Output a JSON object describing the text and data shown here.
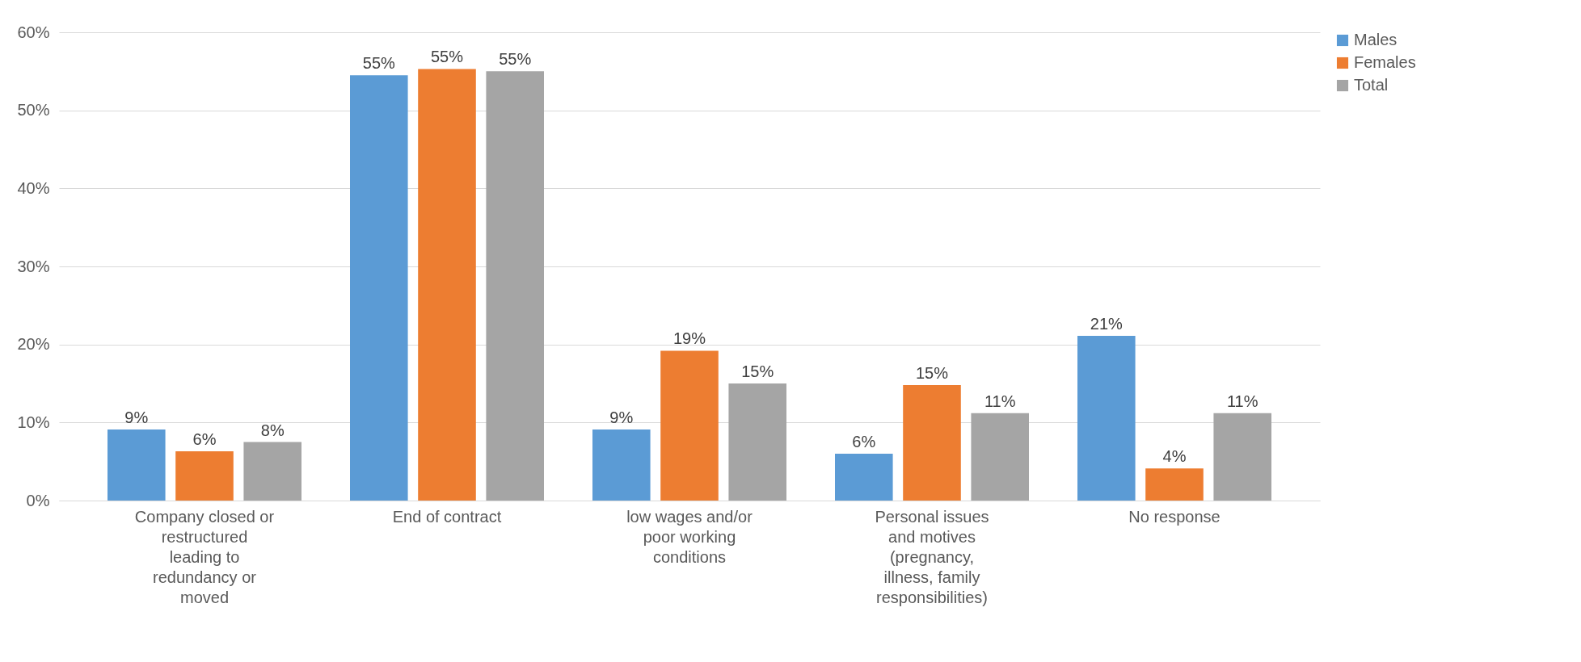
{
  "chart_data": {
    "type": "bar",
    "categories": [
      "Company closed or restructured leading to redundancy or moved",
      "End of contract",
      "low wages and/or poor working conditions",
      "Personal issues and motives (pregnancy, illness, family responsibilities)",
      "No response"
    ],
    "series": [
      {
        "name": "Males",
        "color": "#5b9bd5",
        "values": [
          9.1,
          54.5,
          9.1,
          6.0,
          21.1
        ],
        "value_labels": [
          "9%",
          "55%",
          "9%",
          "6%",
          "21%"
        ]
      },
      {
        "name": "Females",
        "color": "#ed7d31",
        "values": [
          6.3,
          55.3,
          19.2,
          14.8,
          4.1
        ],
        "value_labels": [
          "6%",
          "55%",
          "19%",
          "15%",
          "4%"
        ]
      },
      {
        "name": "Total",
        "color": "#a5a5a5",
        "values": [
          7.5,
          55.0,
          15.0,
          11.2,
          11.2
        ],
        "value_labels": [
          "8%",
          "55%",
          "15%",
          "11%",
          "11%"
        ]
      }
    ],
    "ylim": [
      0,
      60
    ],
    "yticks": [
      {
        "value": 0,
        "label": "0%"
      },
      {
        "value": 10,
        "label": "10%"
      },
      {
        "value": 20,
        "label": "20%"
      },
      {
        "value": 30,
        "label": "30%"
      },
      {
        "value": 40,
        "label": "40%"
      },
      {
        "value": 50,
        "label": "50%"
      },
      {
        "value": 60,
        "label": "60%"
      }
    ],
    "grid": "y",
    "legend": "right"
  }
}
